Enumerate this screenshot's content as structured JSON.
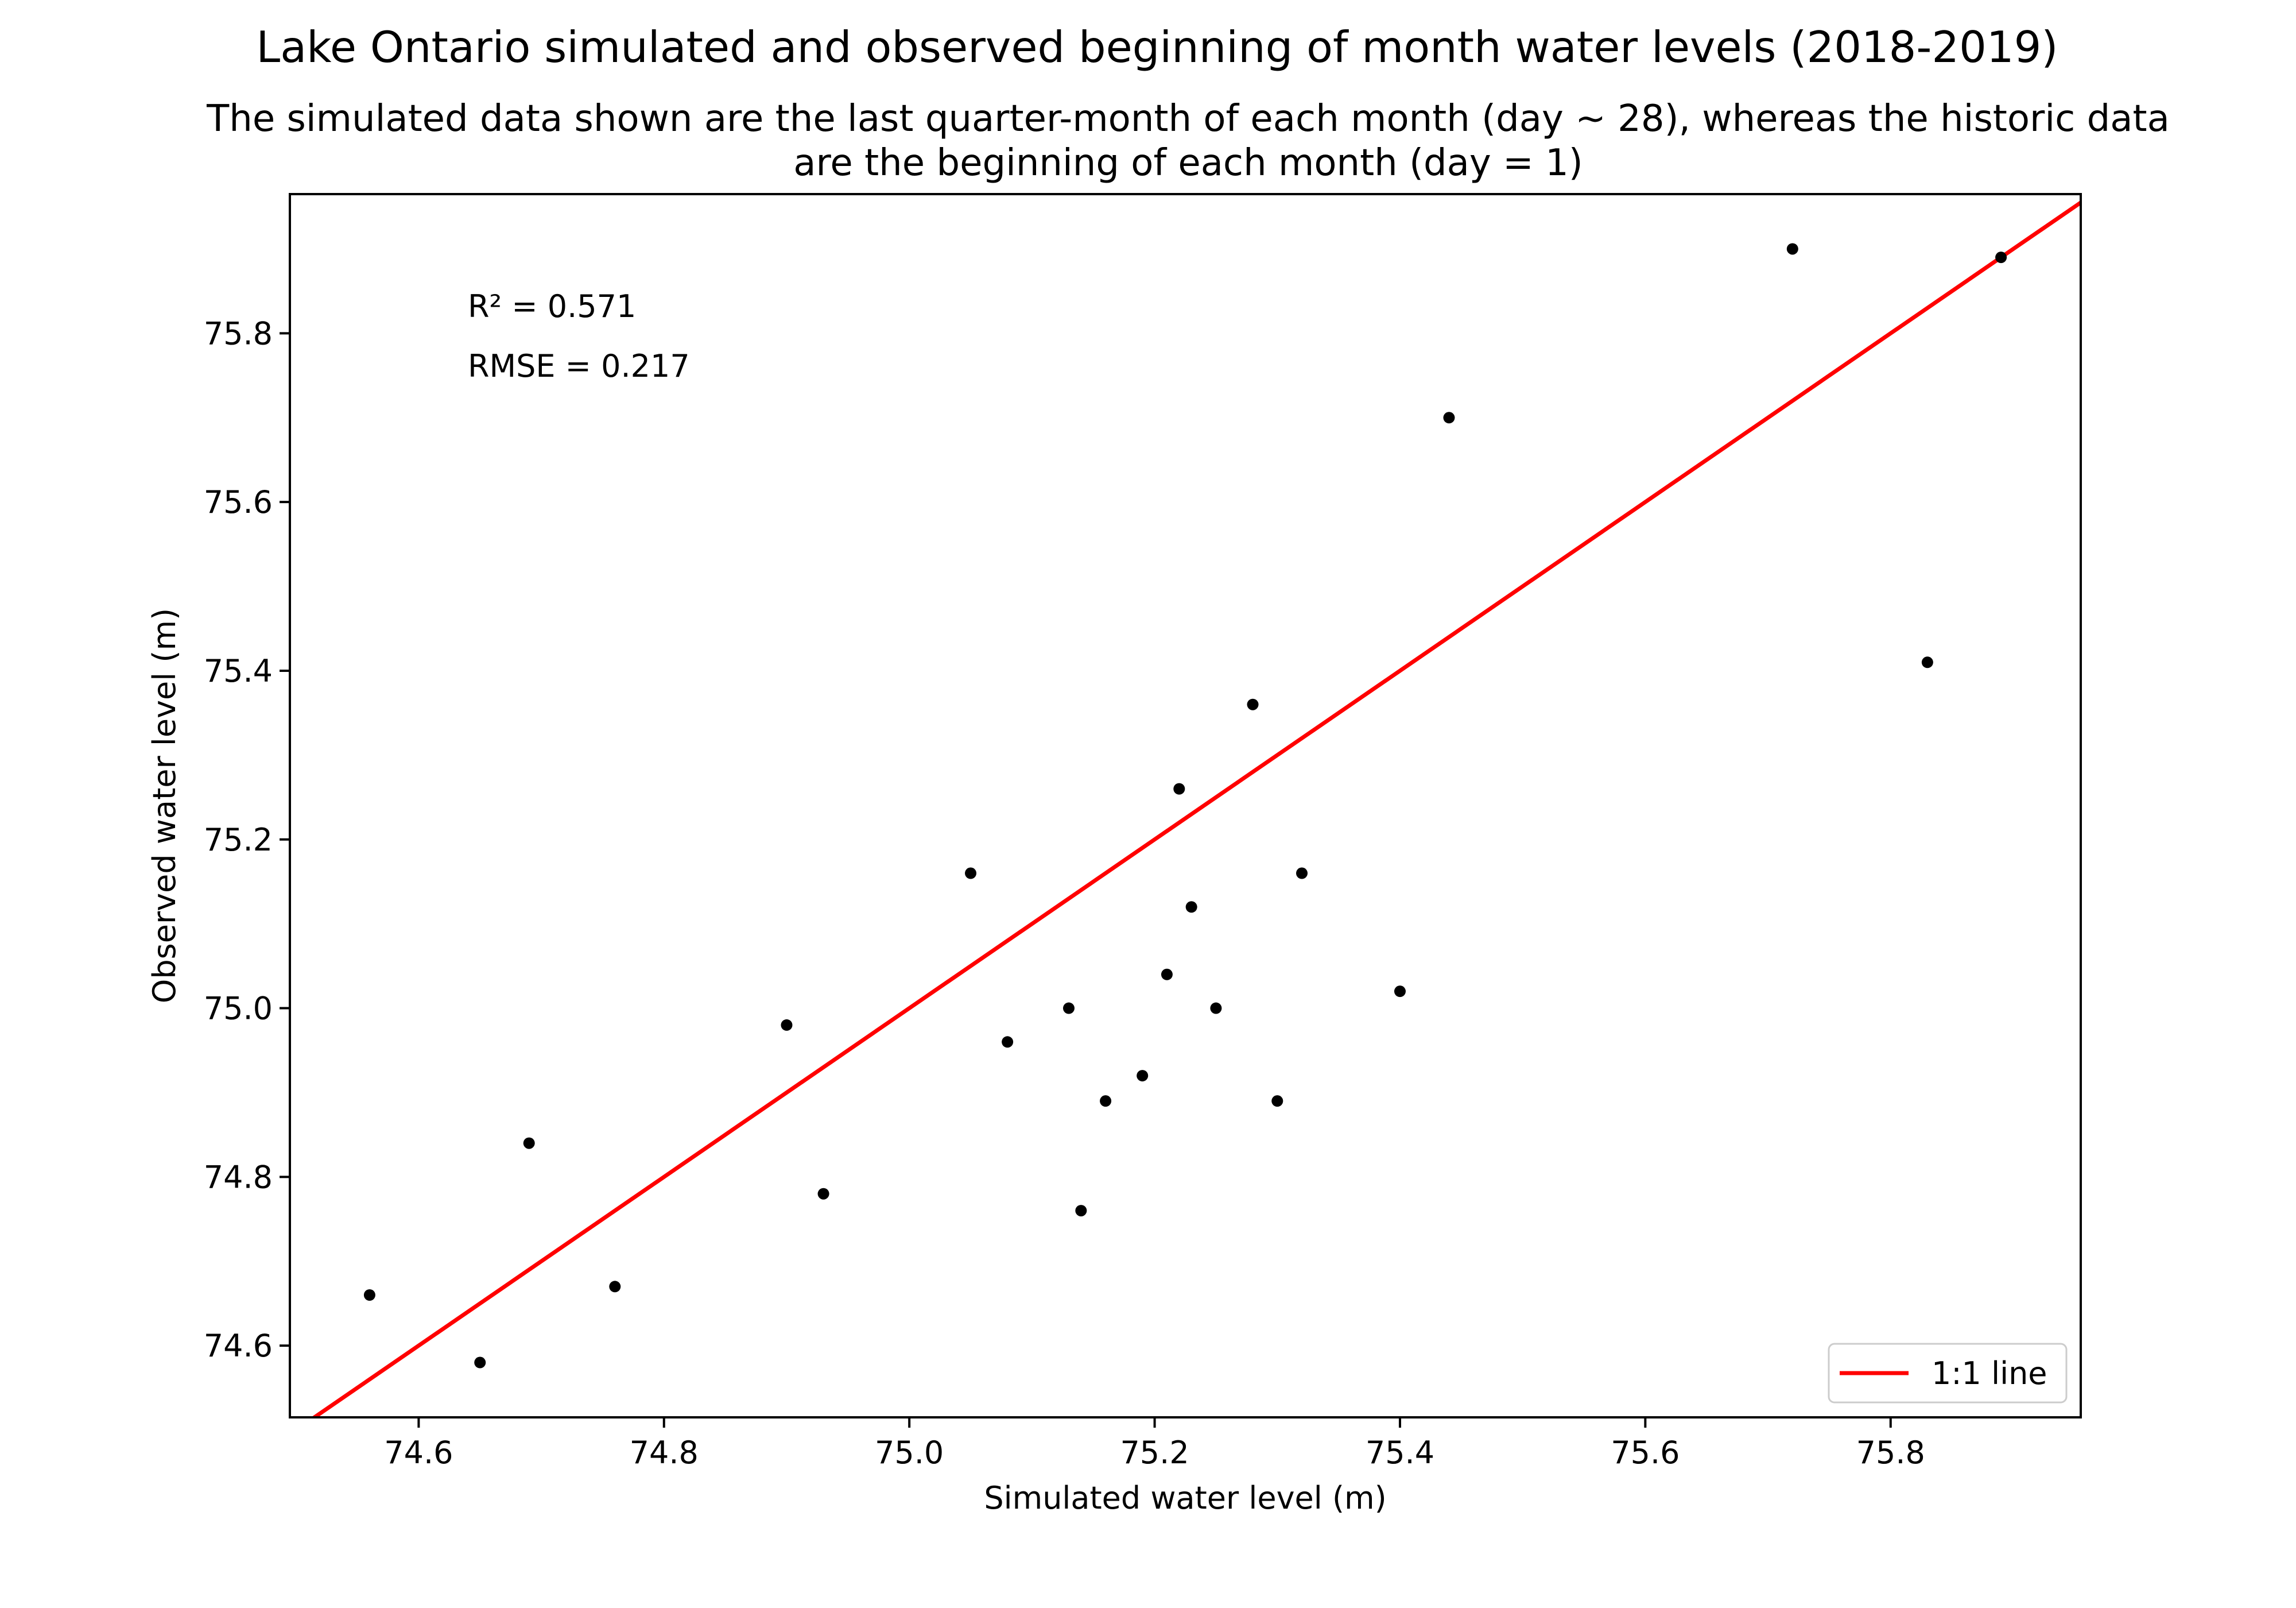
{
  "chart_data": {
    "type": "scatter",
    "title": "Lake Ontario simulated and observed beginning of month water levels (2018-2019)",
    "subtitle_lines": [
      "The simulated data shown are the last quarter-month of each month (day ~ 28), whereas the historic data",
      "are the beginning of each month (day = 1)"
    ],
    "xlabel": "Simulated water level (m)",
    "ylabel": "Observed water level (m)",
    "xlim": [
      74.495,
      75.955
    ],
    "ylim": [
      74.515,
      75.965
    ],
    "xticks": [
      "74.6",
      "74.8",
      "75.0",
      "75.2",
      "75.4",
      "75.6",
      "75.8"
    ],
    "yticks": [
      "74.6",
      "74.8",
      "75.0",
      "75.2",
      "75.4",
      "75.6",
      "75.8"
    ],
    "grid": false,
    "legend_position": "lower-right",
    "annotations": [
      "R² = 0.571",
      "RMSE = 0.217"
    ],
    "series": [
      {
        "type": "scatter",
        "color": "#000000",
        "points": [
          {
            "x": 74.56,
            "y": 74.66
          },
          {
            "x": 74.65,
            "y": 74.58
          },
          {
            "x": 74.69,
            "y": 74.84
          },
          {
            "x": 74.76,
            "y": 74.67
          },
          {
            "x": 74.9,
            "y": 74.98
          },
          {
            "x": 74.93,
            "y": 74.78
          },
          {
            "x": 75.05,
            "y": 75.16
          },
          {
            "x": 75.08,
            "y": 74.96
          },
          {
            "x": 75.13,
            "y": 75.0
          },
          {
            "x": 75.14,
            "y": 74.76
          },
          {
            "x": 75.16,
            "y": 74.89
          },
          {
            "x": 75.19,
            "y": 74.92
          },
          {
            "x": 75.21,
            "y": 75.04
          },
          {
            "x": 75.22,
            "y": 75.26
          },
          {
            "x": 75.23,
            "y": 75.12
          },
          {
            "x": 75.25,
            "y": 75.0
          },
          {
            "x": 75.28,
            "y": 75.36
          },
          {
            "x": 75.3,
            "y": 74.89
          },
          {
            "x": 75.32,
            "y": 75.16
          },
          {
            "x": 75.4,
            "y": 75.02
          },
          {
            "x": 75.44,
            "y": 75.7
          },
          {
            "x": 75.72,
            "y": 75.9
          },
          {
            "x": 75.83,
            "y": 75.41
          },
          {
            "x": 75.89,
            "y": 75.89
          }
        ]
      },
      {
        "type": "line",
        "name": "1:1 line",
        "color": "#ff0000",
        "points": [
          {
            "x": 74.495,
            "y": 74.495
          },
          {
            "x": 75.965,
            "y": 75.965
          }
        ]
      }
    ]
  }
}
